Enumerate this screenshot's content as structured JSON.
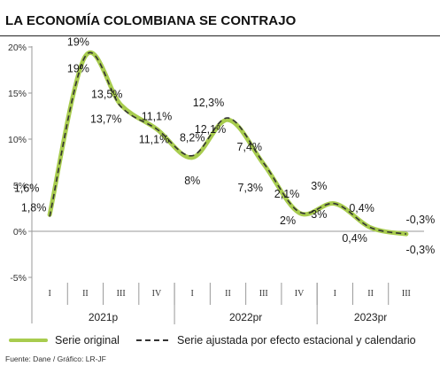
{
  "title": "LA ECONOMÍA COLOMBIANA SE CONTRAJO",
  "source": "Fuente: Dane / Gráfico: LR-JF",
  "colors": {
    "original": "#a8cc4e",
    "adjusted": "#333333",
    "axis": "#999999",
    "text": "#1a1a1a"
  },
  "chart_data": {
    "type": "line",
    "categories": [
      "I",
      "II",
      "III",
      "IV",
      "I",
      "II",
      "III",
      "IV",
      "I",
      "II",
      "III"
    ],
    "groups": [
      {
        "label": "2021p",
        "count": 4
      },
      {
        "label": "2022pr",
        "count": 4
      },
      {
        "label": "2023pr",
        "count": 3
      }
    ],
    "yticks": [
      "20%",
      "15%",
      "10%",
      "5%",
      "0%",
      "-5%"
    ],
    "ylim": [
      -5,
      20
    ],
    "grid": false,
    "series": [
      {
        "name": "Serie original",
        "style": "solid",
        "values": [
          1.8,
          19,
          13.7,
          11.1,
          8,
          12.1,
          7.3,
          2,
          3,
          0.4,
          -0.3
        ],
        "labels": [
          "1,8%",
          "19%",
          "13,7%",
          "11,1%",
          "8%",
          "12,1%",
          "7,3%",
          "2%",
          "3%",
          "0,4%",
          "-0,3%"
        ]
      },
      {
        "name": "Serie ajustada por efecto estacional y calendario",
        "style": "dashed",
        "values": [
          1.6,
          19,
          13.5,
          11.1,
          8.2,
          12.3,
          7.4,
          2.1,
          3,
          0.4,
          -0.3
        ],
        "labels": [
          "1,6%",
          "19%",
          "13,5%",
          "11,1%",
          "8,2%",
          "12,3%",
          "7,4%",
          "2,1%",
          "3%",
          "0,4%",
          "-0,3%"
        ]
      }
    ]
  }
}
